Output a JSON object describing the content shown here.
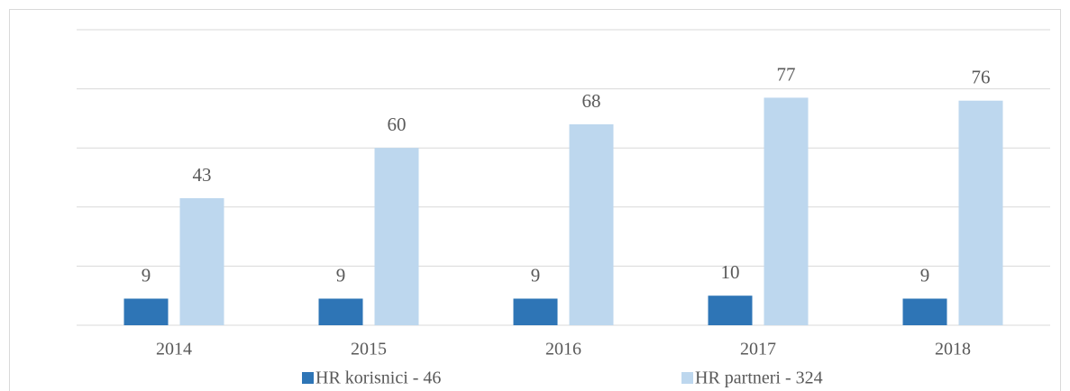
{
  "chart_data": {
    "type": "bar",
    "categories": [
      "2014",
      "2015",
      "2016",
      "2017",
      "2018"
    ],
    "series": [
      {
        "name": "HR korisnici - 46",
        "color": "#2e75b6",
        "values": [
          9,
          9,
          9,
          10,
          9
        ]
      },
      {
        "name": "HR partneri - 324",
        "color": "#bdd7ee",
        "values": [
          43,
          60,
          68,
          77,
          76
        ]
      }
    ],
    "ylim": [
      0,
      100
    ],
    "yticks": [
      0,
      20,
      40,
      60,
      80,
      100
    ],
    "grid": true,
    "legend": "bottom"
  }
}
